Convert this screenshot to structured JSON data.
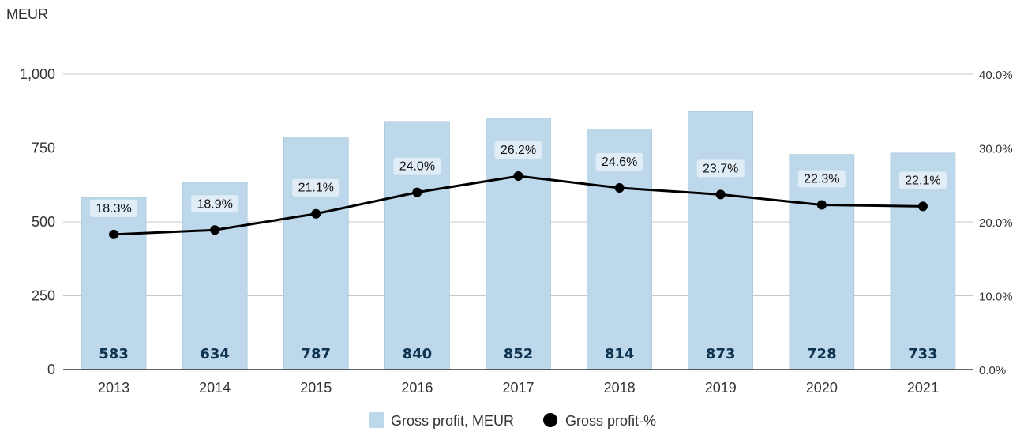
{
  "chart_data": {
    "type": "bar",
    "unit_label": "MEUR",
    "categories": [
      "2013",
      "2014",
      "2015",
      "2016",
      "2017",
      "2018",
      "2019",
      "2020",
      "2021"
    ],
    "series": [
      {
        "name": "Gross profit, MEUR",
        "type": "bar",
        "axis": "left",
        "values": [
          583,
          634,
          787,
          840,
          852,
          814,
          873,
          728,
          733
        ],
        "labels": [
          "583",
          "634",
          "787",
          "840",
          "852",
          "814",
          "873",
          "728",
          "733"
        ]
      },
      {
        "name": "Gross profit-%",
        "type": "line",
        "axis": "right",
        "values": [
          18.3,
          18.9,
          21.1,
          24.0,
          26.2,
          24.6,
          23.7,
          22.3,
          22.1
        ],
        "labels": [
          "18.3%",
          "18.9%",
          "21.1%",
          "24.0%",
          "26.2%",
          "24.6%",
          "23.7%",
          "22.3%",
          "22.1%"
        ]
      }
    ],
    "ylim": [
      0,
      1000
    ],
    "yticks": [
      0,
      250,
      500,
      750,
      1000
    ],
    "ytick_labels": [
      "0",
      "250",
      "500",
      "750",
      "1,000"
    ],
    "y2lim": [
      0,
      40
    ],
    "y2ticks": [
      0,
      10,
      20,
      30,
      40
    ],
    "y2tick_labels": [
      "0.0%",
      "10.0%",
      "20.0%",
      "30.0%",
      "40.0%"
    ],
    "grid": true,
    "legend_position": "bottom-center",
    "colors": {
      "bar": "#bcd8ea",
      "bar_label": "#0d3350",
      "line": "#000000",
      "grid": "#c8c8c8",
      "axis": "#333333"
    }
  }
}
